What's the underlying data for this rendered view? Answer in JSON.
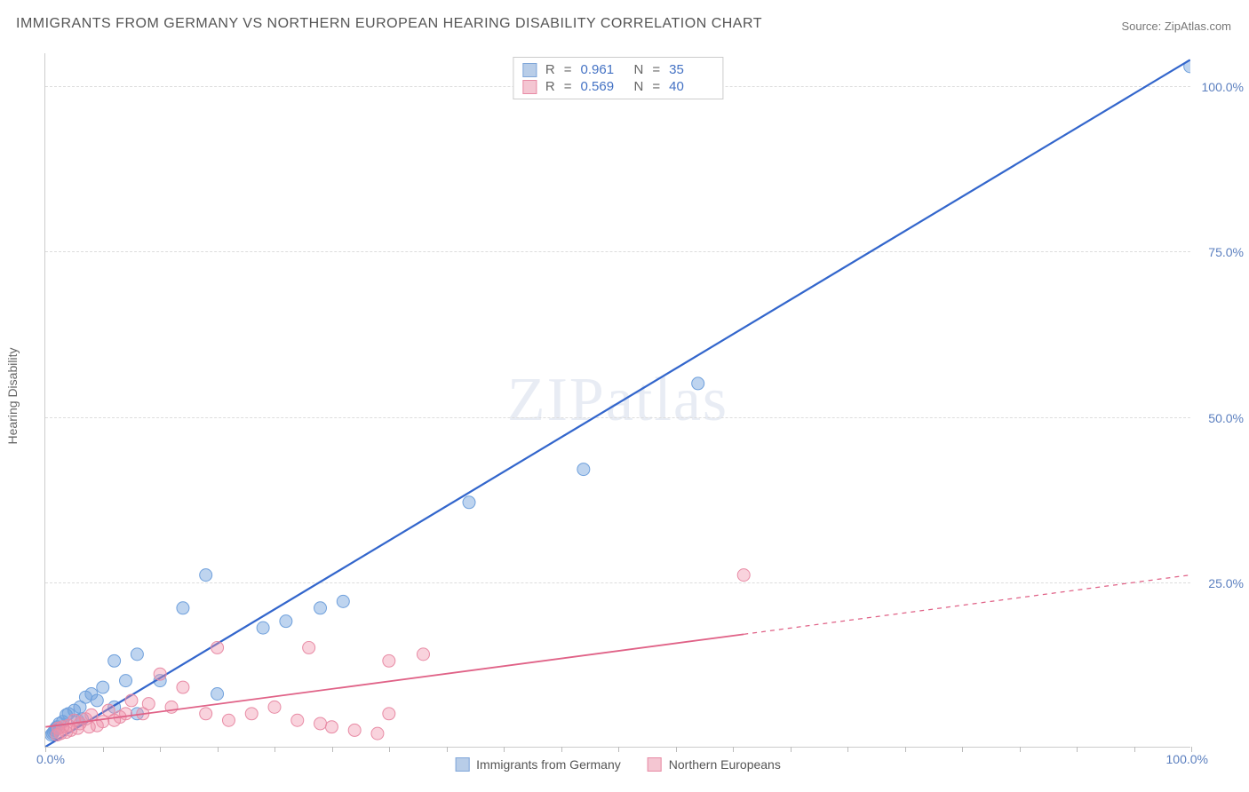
{
  "title": "IMMIGRANTS FROM GERMANY VS NORTHERN EUROPEAN HEARING DISABILITY CORRELATION CHART",
  "source": "Source: ZipAtlas.com",
  "chart": {
    "type": "scatter",
    "y_axis_title": "Hearing Disability",
    "watermark": "ZIPatlas",
    "background_color": "#ffffff",
    "grid_color": "#dddddd",
    "axis_color": "#cccccc",
    "xlim": [
      0,
      100
    ],
    "ylim": [
      0,
      105
    ],
    "x_origin_label": "0.0%",
    "x_max_label": "100.0%",
    "x_ticks": [
      0,
      5,
      10,
      15,
      20,
      25,
      30,
      35,
      40,
      45,
      50,
      55,
      60,
      65,
      70,
      75,
      80,
      85,
      90,
      95,
      100
    ],
    "y_grid": [
      {
        "value": 25,
        "label": "25.0%"
      },
      {
        "value": 50,
        "label": "50.0%"
      },
      {
        "value": 75,
        "label": "75.0%"
      },
      {
        "value": 100,
        "label": "100.0%"
      }
    ],
    "y_label_color": "#5b7fbf",
    "series": [
      {
        "name": "Immigrants from Germany",
        "marker_fill": "rgba(110,160,220,0.45)",
        "marker_stroke": "#6fa0dc",
        "line_color": "#3366cc",
        "line_width": 2.2,
        "marker_radius": 7,
        "swatch_fill": "#b8cde8",
        "swatch_border": "#7fa6d9",
        "r_value": "0.961",
        "n_value": "35",
        "trend": {
          "x1": 0,
          "y1": 0,
          "x2": 100,
          "y2": 104,
          "dash_from_x": 101
        },
        "points": [
          [
            100,
            103
          ],
          [
            57,
            55
          ],
          [
            47,
            42
          ],
          [
            37,
            37
          ],
          [
            14,
            26
          ],
          [
            12,
            21
          ],
          [
            26,
            22
          ],
          [
            24,
            21
          ],
          [
            21,
            19
          ],
          [
            19,
            18
          ],
          [
            8,
            14
          ],
          [
            6,
            13
          ],
          [
            10,
            10
          ],
          [
            15,
            8
          ],
          [
            7,
            10
          ],
          [
            5,
            9
          ],
          [
            4,
            8
          ],
          [
            3.5,
            7.5
          ],
          [
            4.5,
            7
          ],
          [
            6,
            6
          ],
          [
            3,
            6
          ],
          [
            2.5,
            5.5
          ],
          [
            2,
            5
          ],
          [
            1.8,
            4.8
          ],
          [
            8,
            5
          ],
          [
            3.2,
            4.2
          ],
          [
            2.8,
            4
          ],
          [
            1.5,
            3.8
          ],
          [
            1.2,
            3.5
          ],
          [
            1,
            3
          ],
          [
            0.9,
            2.8
          ],
          [
            0.8,
            2.5
          ],
          [
            0.7,
            2.2
          ],
          [
            0.6,
            2
          ],
          [
            0.5,
            1.8
          ]
        ]
      },
      {
        "name": "Northern Europeans",
        "marker_fill": "rgba(240,145,170,0.4)",
        "marker_stroke": "#e88ba5",
        "line_color": "#e06287",
        "line_width": 1.8,
        "marker_radius": 7,
        "swatch_fill": "#f4c6d2",
        "swatch_border": "#e88ba5",
        "r_value": "0.569",
        "n_value": "40",
        "trend": {
          "x1": 0,
          "y1": 3,
          "x2": 100,
          "y2": 26,
          "dash_from_x": 61
        },
        "points": [
          [
            61,
            26
          ],
          [
            33,
            14
          ],
          [
            30,
            13
          ],
          [
            23,
            15
          ],
          [
            15,
            15
          ],
          [
            12,
            9
          ],
          [
            10,
            11
          ],
          [
            20,
            6
          ],
          [
            18,
            5
          ],
          [
            29,
            2
          ],
          [
            25,
            3
          ],
          [
            24,
            3.5
          ],
          [
            27,
            2.5
          ],
          [
            22,
            4
          ],
          [
            16,
            4
          ],
          [
            14,
            5
          ],
          [
            11,
            6
          ],
          [
            9,
            6.5
          ],
          [
            8.5,
            5
          ],
          [
            7.5,
            7
          ],
          [
            7,
            5
          ],
          [
            6.5,
            4.5
          ],
          [
            6,
            4
          ],
          [
            5.5,
            5.5
          ],
          [
            5,
            3.8
          ],
          [
            4.5,
            3.2
          ],
          [
            4,
            4.8
          ],
          [
            3.8,
            3
          ],
          [
            3.5,
            4.2
          ],
          [
            3,
            3.5
          ],
          [
            2.8,
            2.8
          ],
          [
            2.5,
            4
          ],
          [
            2.2,
            2.5
          ],
          [
            2,
            3.2
          ],
          [
            1.8,
            2.2
          ],
          [
            1.5,
            3
          ],
          [
            1.3,
            2
          ],
          [
            1.1,
            2.8
          ],
          [
            1,
            1.8
          ],
          [
            30,
            5
          ]
        ]
      }
    ],
    "legend_top_labels": {
      "r": "R",
      "eq": "=",
      "n": "N"
    },
    "legend_bottom": [
      {
        "label": "Immigrants from Germany",
        "series": 0
      },
      {
        "label": "Northern Europeans",
        "series": 1
      }
    ]
  }
}
